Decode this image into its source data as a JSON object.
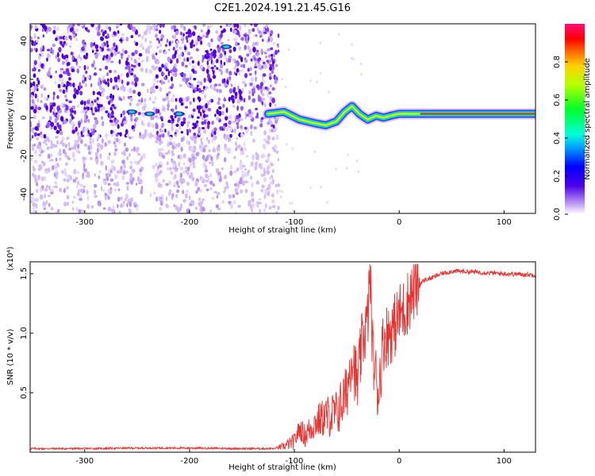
{
  "title": "C2E1.2024.191.21.45.G16",
  "chart_data": [
    {
      "type": "heatmap",
      "xlabel": "Height of straight line (km)",
      "ylabel": "Frequency (Hz)",
      "xlim": [
        -352,
        130
      ],
      "ylim": [
        -50,
        49
      ],
      "xticks": [
        -300,
        -200,
        -100,
        0,
        100
      ],
      "yticks": [
        -40,
        -20,
        0,
        20,
        40
      ],
      "ridge": {
        "x": [
          -125,
          -110,
          -95,
          -80,
          -70,
          -60,
          -52,
          -45,
          -38,
          -30,
          -22,
          -15,
          -8,
          0,
          20,
          60,
          100,
          130
        ],
        "y": [
          2,
          3,
          -1,
          -3,
          -4,
          -2,
          3,
          6,
          2,
          -1,
          1,
          0,
          1,
          2,
          2,
          2,
          2,
          2
        ]
      },
      "colorbar": {
        "label": "Normalized spectral amplitude",
        "ticks": [
          0.0,
          0.2,
          0.4,
          0.6,
          0.8
        ],
        "range": [
          0,
          1
        ]
      },
      "grid": false
    },
    {
      "type": "line",
      "xlabel": "Height of straight line (km)",
      "ylabel": "SNR (10 * v/v)",
      "multiplier": "(x10⁴)",
      "xlim": [
        -352,
        130
      ],
      "ylim": [
        0,
        1.6
      ],
      "xticks": [
        -300,
        -200,
        -100,
        0,
        100
      ],
      "yticks": [
        0.5,
        1.0,
        1.5
      ],
      "ytick_labels": [
        "0.5",
        "1.0",
        "1.5"
      ],
      "color": "#e8322f",
      "series": [
        {
          "x": [
            -352,
            -300,
            -250,
            -200,
            -150,
            -120,
            -110,
            -100,
            -95,
            -90,
            -80,
            -70,
            -60,
            -50,
            -45,
            -40,
            -35,
            -30,
            -28,
            -25,
            -20,
            -15,
            -10,
            -5,
            0,
            5,
            10,
            15,
            20,
            25,
            30,
            40,
            50,
            60,
            80,
            100,
            130
          ],
          "y": [
            0.03,
            0.03,
            0.035,
            0.035,
            0.03,
            0.03,
            0.05,
            0.09,
            0.2,
            0.14,
            0.25,
            0.3,
            0.32,
            0.5,
            0.85,
            0.55,
            0.95,
            1.1,
            1.55,
            0.8,
            0.5,
            0.95,
            1.0,
            1.05,
            1.15,
            1.2,
            1.3,
            1.38,
            1.42,
            1.45,
            1.46,
            1.5,
            1.52,
            1.52,
            1.51,
            1.5,
            1.49
          ]
        }
      ],
      "grid": false
    }
  ]
}
